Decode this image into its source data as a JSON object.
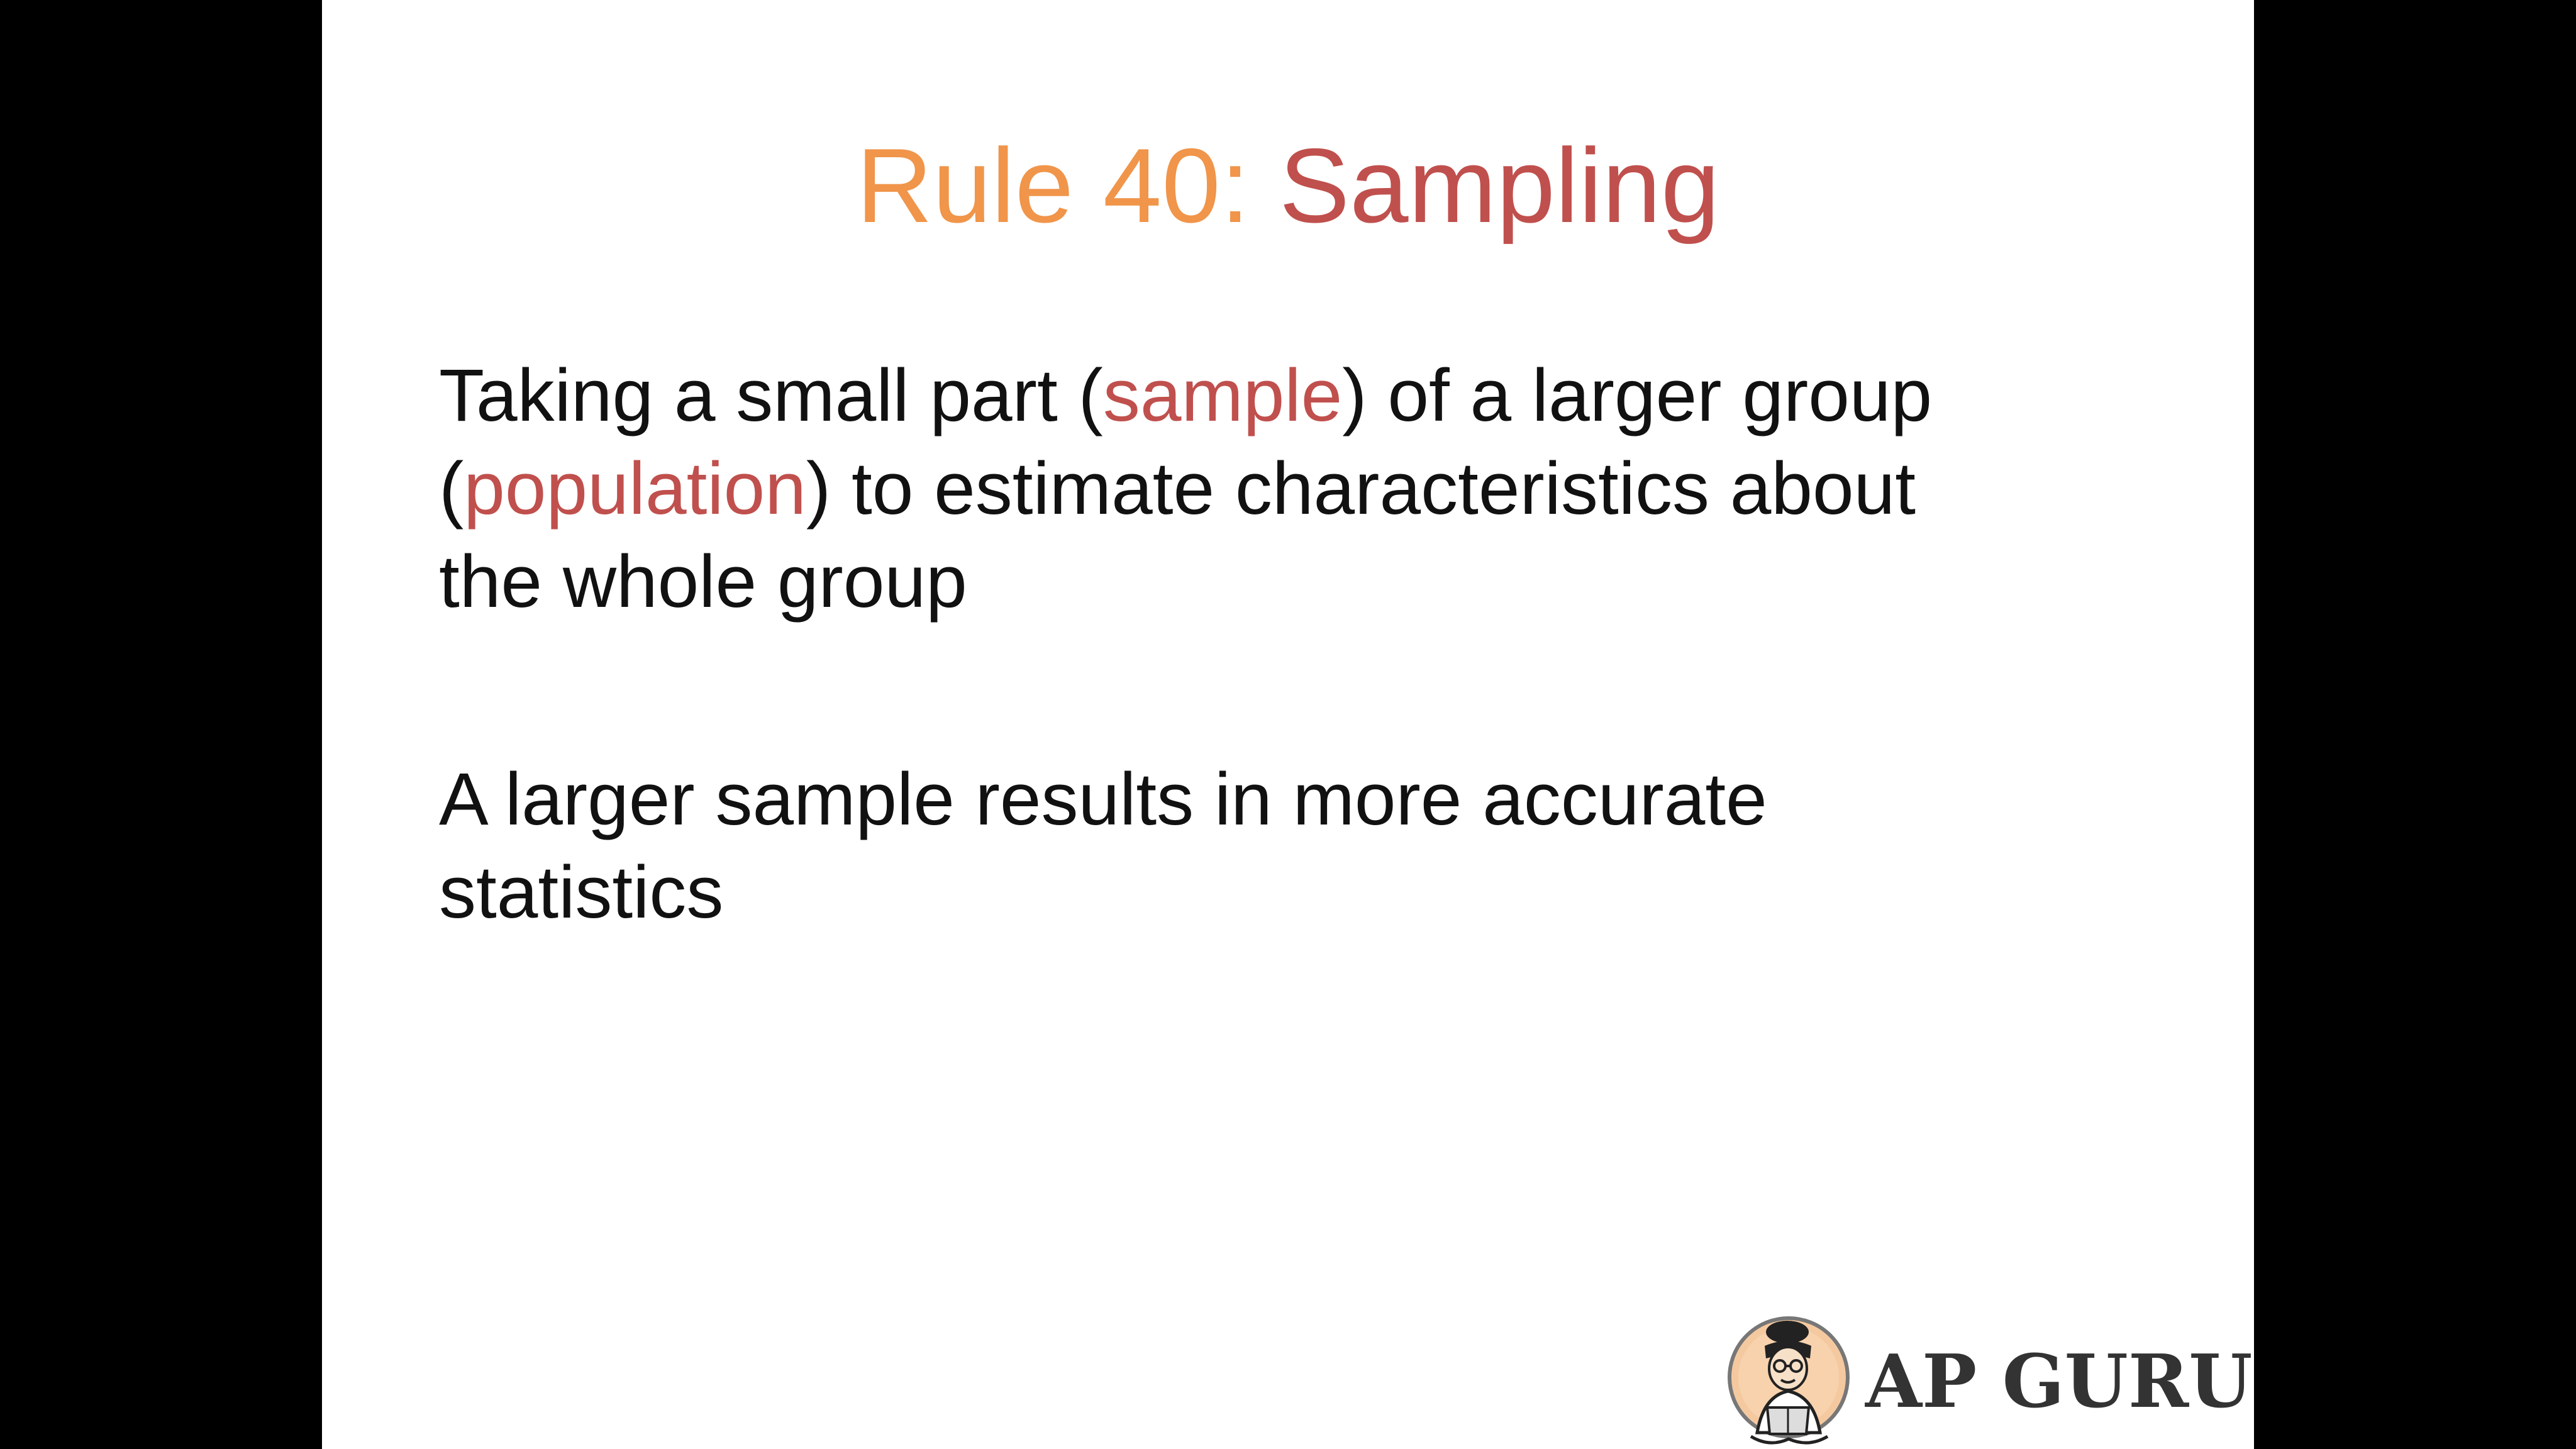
{
  "slide": {
    "title_part1": "Rule 40: ",
    "title_part2": "Sampling",
    "paragraph1": {
      "line1_pre": "Taking a small part (",
      "line1_hl": "sample",
      "line1_post": ") of a larger group",
      "line2_pre": "(",
      "line2_hl": "population",
      "line2_post": ") to estimate characteristics about",
      "line3": "the whole group"
    },
    "paragraph2": {
      "line1": "A larger sample results in more accurate",
      "line2": "statistics"
    },
    "logo_text": "AP GURU"
  },
  "colors": {
    "title_accent": "#f0954a",
    "highlight": "#c0504d",
    "text": "#111111",
    "background": "#ffffff",
    "letterbox": "#000000"
  },
  "icons": [
    "ap-guru-logo-icon"
  ]
}
